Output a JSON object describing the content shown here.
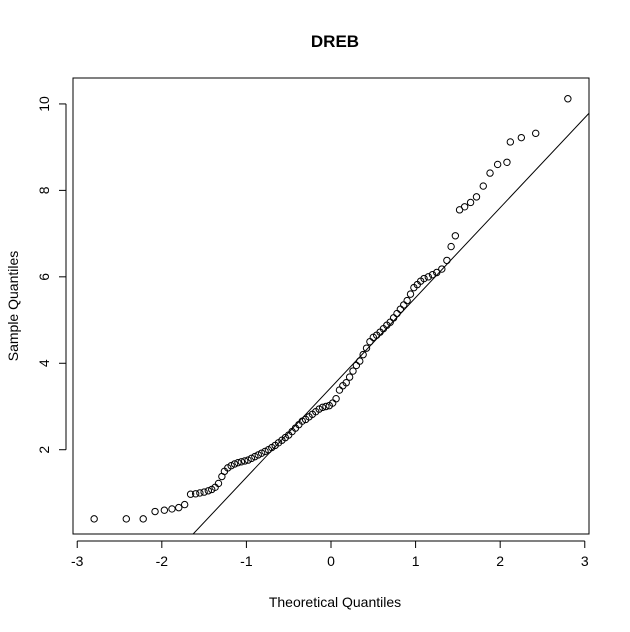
{
  "chart_data": {
    "type": "scatter",
    "title": "DREB",
    "xlabel": "Theoretical Quantiles",
    "ylabel": "Sample Quantiles",
    "xlim": [
      -3.05,
      3.05
    ],
    "ylim": [
      0.05,
      10.6
    ],
    "x_ticks": [
      "-3",
      "-2",
      "-1",
      "0",
      "1",
      "2",
      "3"
    ],
    "y_ticks": [
      "2",
      "4",
      "6",
      "8",
      "10"
    ],
    "grid": false,
    "legend": "none",
    "marker": "open-circle",
    "reference_line": {
      "intercept": 3.44,
      "slope": 2.08
    },
    "points": [
      {
        "x": -2.8,
        "y": 0.4
      },
      {
        "x": -2.42,
        "y": 0.4
      },
      {
        "x": -2.22,
        "y": 0.4
      },
      {
        "x": -2.08,
        "y": 0.57
      },
      {
        "x": -1.97,
        "y": 0.6
      },
      {
        "x": -1.88,
        "y": 0.63
      },
      {
        "x": -1.8,
        "y": 0.66
      },
      {
        "x": -1.73,
        "y": 0.73
      },
      {
        "x": -1.66,
        "y": 0.97
      },
      {
        "x": -1.6,
        "y": 0.98
      },
      {
        "x": -1.55,
        "y": 1.0
      },
      {
        "x": -1.5,
        "y": 1.02
      },
      {
        "x": -1.45,
        "y": 1.05
      },
      {
        "x": -1.41,
        "y": 1.08
      },
      {
        "x": -1.37,
        "y": 1.13
      },
      {
        "x": -1.33,
        "y": 1.22
      },
      {
        "x": -1.29,
        "y": 1.38
      },
      {
        "x": -1.26,
        "y": 1.5
      },
      {
        "x": -1.22,
        "y": 1.58
      },
      {
        "x": -1.18,
        "y": 1.63
      },
      {
        "x": -1.14,
        "y": 1.67
      },
      {
        "x": -1.1,
        "y": 1.7
      },
      {
        "x": -1.06,
        "y": 1.72
      },
      {
        "x": -1.02,
        "y": 1.74
      },
      {
        "x": -0.98,
        "y": 1.76
      },
      {
        "x": -0.94,
        "y": 1.8
      },
      {
        "x": -0.9,
        "y": 1.84
      },
      {
        "x": -0.86,
        "y": 1.88
      },
      {
        "x": -0.82,
        "y": 1.92
      },
      {
        "x": -0.78,
        "y": 1.96
      },
      {
        "x": -0.74,
        "y": 2.0
      },
      {
        "x": -0.7,
        "y": 2.05
      },
      {
        "x": -0.66,
        "y": 2.1
      },
      {
        "x": -0.62,
        "y": 2.16
      },
      {
        "x": -0.58,
        "y": 2.22
      },
      {
        "x": -0.54,
        "y": 2.28
      },
      {
        "x": -0.5,
        "y": 2.34
      },
      {
        "x": -0.46,
        "y": 2.42
      },
      {
        "x": -0.42,
        "y": 2.5
      },
      {
        "x": -0.38,
        "y": 2.58
      },
      {
        "x": -0.34,
        "y": 2.66
      },
      {
        "x": -0.3,
        "y": 2.7
      },
      {
        "x": -0.26,
        "y": 2.76
      },
      {
        "x": -0.22,
        "y": 2.82
      },
      {
        "x": -0.18,
        "y": 2.88
      },
      {
        "x": -0.14,
        "y": 2.94
      },
      {
        "x": -0.1,
        "y": 2.98
      },
      {
        "x": -0.06,
        "y": 3.0
      },
      {
        "x": -0.02,
        "y": 3.02
      },
      {
        "x": 0.02,
        "y": 3.08
      },
      {
        "x": 0.06,
        "y": 3.18
      },
      {
        "x": 0.1,
        "y": 3.38
      },
      {
        "x": 0.14,
        "y": 3.48
      },
      {
        "x": 0.18,
        "y": 3.55
      },
      {
        "x": 0.22,
        "y": 3.68
      },
      {
        "x": 0.26,
        "y": 3.82
      },
      {
        "x": 0.3,
        "y": 3.95
      },
      {
        "x": 0.34,
        "y": 4.05
      },
      {
        "x": 0.38,
        "y": 4.2
      },
      {
        "x": 0.42,
        "y": 4.35
      },
      {
        "x": 0.46,
        "y": 4.5
      },
      {
        "x": 0.5,
        "y": 4.6
      },
      {
        "x": 0.54,
        "y": 4.65
      },
      {
        "x": 0.58,
        "y": 4.72
      },
      {
        "x": 0.62,
        "y": 4.8
      },
      {
        "x": 0.66,
        "y": 4.88
      },
      {
        "x": 0.7,
        "y": 4.95
      },
      {
        "x": 0.74,
        "y": 5.05
      },
      {
        "x": 0.78,
        "y": 5.15
      },
      {
        "x": 0.82,
        "y": 5.25
      },
      {
        "x": 0.86,
        "y": 5.35
      },
      {
        "x": 0.9,
        "y": 5.45
      },
      {
        "x": 0.94,
        "y": 5.6
      },
      {
        "x": 0.98,
        "y": 5.75
      },
      {
        "x": 1.02,
        "y": 5.82
      },
      {
        "x": 1.06,
        "y": 5.9
      },
      {
        "x": 1.1,
        "y": 5.96
      },
      {
        "x": 1.15,
        "y": 6.0
      },
      {
        "x": 1.2,
        "y": 6.05
      },
      {
        "x": 1.25,
        "y": 6.1
      },
      {
        "x": 1.31,
        "y": 6.18
      },
      {
        "x": 1.37,
        "y": 6.38
      },
      {
        "x": 1.42,
        "y": 6.7
      },
      {
        "x": 1.47,
        "y": 6.95
      },
      {
        "x": 1.52,
        "y": 7.55
      },
      {
        "x": 1.58,
        "y": 7.62
      },
      {
        "x": 1.65,
        "y": 7.72
      },
      {
        "x": 1.72,
        "y": 7.85
      },
      {
        "x": 1.8,
        "y": 8.1
      },
      {
        "x": 1.88,
        "y": 8.4
      },
      {
        "x": 1.97,
        "y": 8.6
      },
      {
        "x": 2.08,
        "y": 8.65
      },
      {
        "x": 2.12,
        "y": 9.12
      },
      {
        "x": 2.25,
        "y": 9.22
      },
      {
        "x": 2.42,
        "y": 9.32
      },
      {
        "x": 2.8,
        "y": 10.12
      }
    ]
  }
}
